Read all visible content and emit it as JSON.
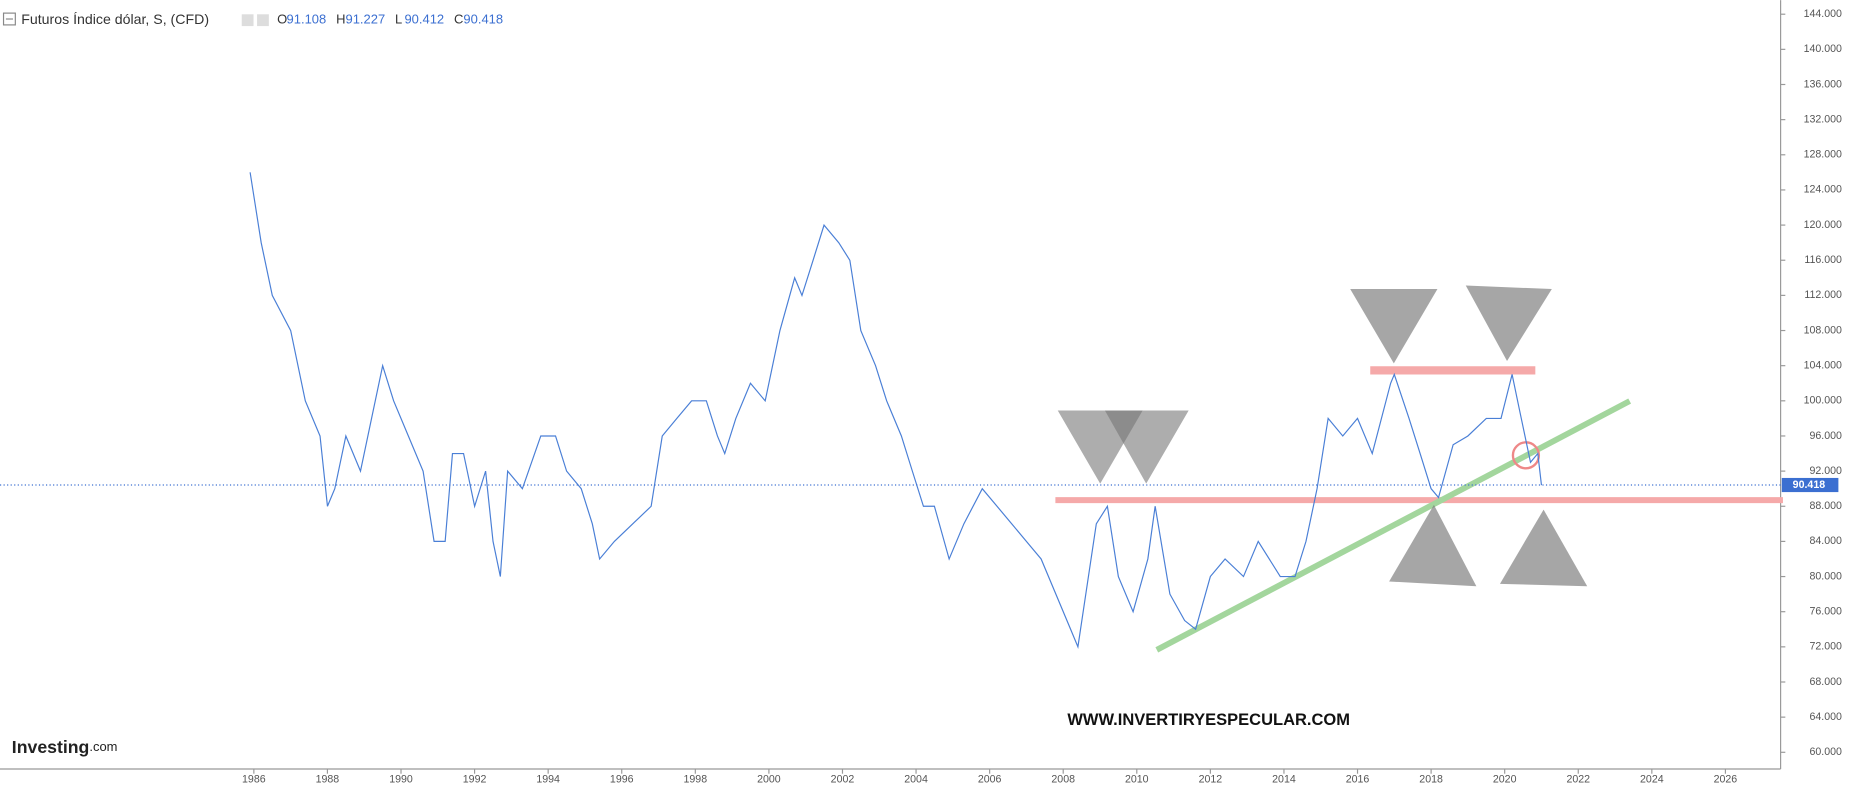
{
  "header": {
    "title": "Futuros Índice dólar, S, (CFD)",
    "ohlc": [
      {
        "label": "O",
        "value": 91.108
      },
      {
        "label": "H",
        "value": 91.227
      },
      {
        "label": "L",
        "value": 90.412
      },
      {
        "label": "C",
        "value": 90.418
      }
    ]
  },
  "watermark": "WWW.INVERTIRYESPECULAR.COM",
  "logo": {
    "name": "Investing",
    "suffix": ".com"
  },
  "chart_data": {
    "type": "line",
    "color": "#4a7fd6",
    "x": [
      1985.9,
      1986.2,
      1986.5,
      1987.0,
      1987.4,
      1987.8,
      1988.0,
      1988.2,
      1988.5,
      1988.9,
      1989.2,
      1989.5,
      1989.8,
      1990.2,
      1990.6,
      1990.9,
      1991.2,
      1991.4,
      1991.7,
      1992.0,
      1992.3,
      1992.5,
      1992.7,
      1992.9,
      1993.3,
      1993.8,
      1994.2,
      1994.5,
      1994.9,
      1995.2,
      1995.4,
      1995.8,
      1996.3,
      1996.8,
      1997.1,
      1997.5,
      1997.9,
      1998.3,
      1998.6,
      1998.8,
      1999.1,
      1999.5,
      1999.9,
      2000.3,
      2000.7,
      2000.9,
      2001.2,
      2001.5,
      2001.9,
      2002.2,
      2002.5,
      2002.9,
      2003.2,
      2003.6,
      2003.9,
      2004.2,
      2004.5,
      2004.9,
      2005.3,
      2005.8,
      2006.2,
      2006.6,
      2007.0,
      2007.4,
      2007.8,
      2008.2,
      2008.4,
      2008.9,
      2009.2,
      2009.5,
      2009.9,
      2010.3,
      2010.5,
      2010.9,
      2011.3,
      2011.6,
      2012.0,
      2012.4,
      2012.9,
      2013.3,
      2013.9,
      2014.3,
      2014.6,
      2014.9,
      2015.2,
      2015.6,
      2016.0,
      2016.4,
      2016.9,
      2017.0,
      2017.4,
      2017.7,
      2018.0,
      2018.2,
      2018.6,
      2019.0,
      2019.5,
      2019.9,
      2020.2,
      2020.4,
      2020.7,
      2020.9,
      2021.0
    ],
    "values": [
      126,
      118,
      112,
      108,
      100,
      96,
      88,
      90,
      96,
      92,
      98,
      104,
      100,
      96,
      92,
      84,
      84,
      94,
      94,
      88,
      92,
      84,
      80,
      92,
      90,
      96,
      96,
      92,
      90,
      86,
      82,
      84,
      86,
      88,
      96,
      98,
      100,
      100,
      96,
      94,
      98,
      102,
      100,
      108,
      114,
      112,
      116,
      120,
      118,
      116,
      108,
      104,
      100,
      96,
      92,
      88,
      88,
      82,
      86,
      90,
      88,
      86,
      84,
      82,
      78,
      74,
      72,
      86,
      88,
      80,
      76,
      82,
      88,
      78,
      75,
      74,
      80,
      82,
      80,
      84,
      80,
      80,
      84,
      90,
      98,
      96,
      98,
      94,
      102,
      103,
      98,
      94,
      90,
      89,
      95,
      96,
      98,
      98,
      103,
      99,
      93,
      94,
      90.4
    ],
    "xlim": [
      1979.1,
      2027.5
    ],
    "ylim": [
      58.1,
      145.6
    ],
    "xticks": [
      1986,
      1988,
      1990,
      1992,
      1994,
      1996,
      1998,
      2000,
      2002,
      2004,
      2006,
      2008,
      2010,
      2012,
      2014,
      2016,
      2018,
      2020,
      2022,
      2024,
      2026
    ],
    "yticks": [
      {
        "value": 60,
        "label": "60.000"
      },
      {
        "value": 64,
        "label": "64.000"
      },
      {
        "value": 68,
        "label": "68.000"
      },
      {
        "value": 72,
        "label": "72.000"
      },
      {
        "value": 76,
        "label": "76.000"
      },
      {
        "value": 80,
        "label": "80.000"
      },
      {
        "value": 84,
        "label": "84.000"
      },
      {
        "value": 88,
        "label": "88.000"
      },
      {
        "value": 92,
        "label": "92.000"
      },
      {
        "value": 96,
        "label": "96.000"
      },
      {
        "value": 100,
        "label": "100.000"
      },
      {
        "value": 104,
        "label": "104.000"
      },
      {
        "value": 108,
        "label": "108.000"
      },
      {
        "value": 112,
        "label": "112.000"
      },
      {
        "value": 116,
        "label": "116.000"
      },
      {
        "value": 120,
        "label": "120.000"
      },
      {
        "value": 124,
        "label": "124.000"
      },
      {
        "value": 128,
        "label": "128.000"
      },
      {
        "value": 132,
        "label": "132.000"
      },
      {
        "value": 136,
        "label": "136.000"
      },
      {
        "value": 140,
        "label": "140.000"
      },
      {
        "value": 144,
        "label": "144.000"
      }
    ]
  }
}
